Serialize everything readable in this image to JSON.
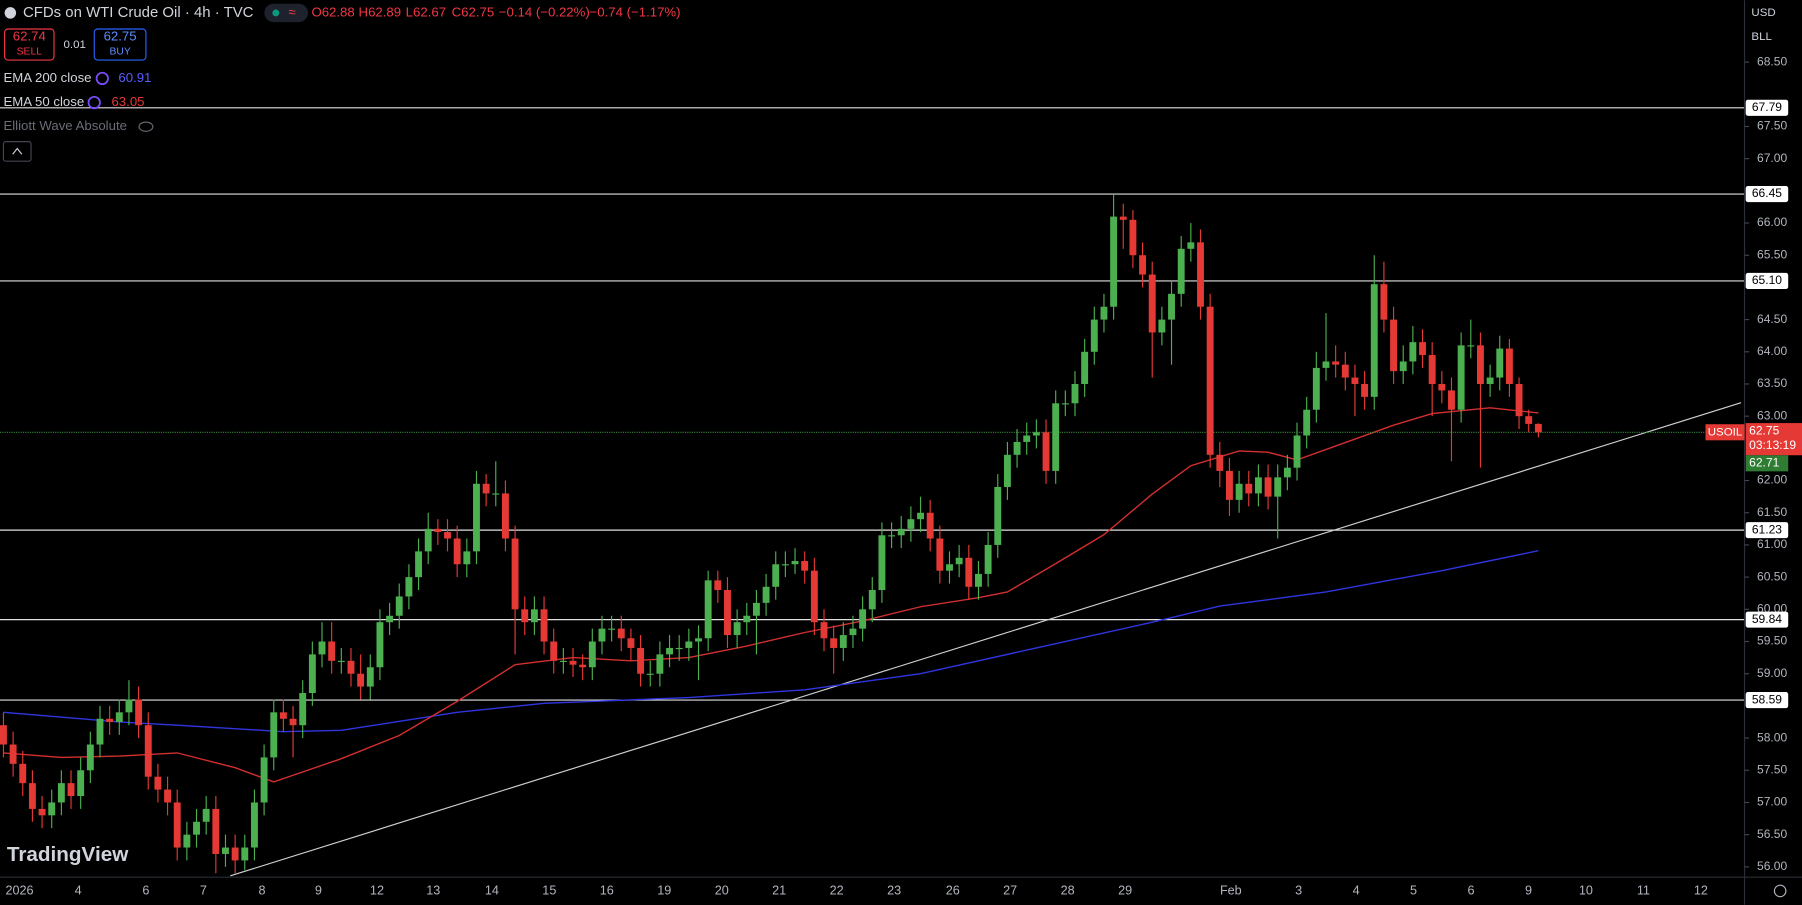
{
  "header": {
    "title": "CFDs on WTI Crude Oil · 4h · TVC",
    "open": "O62.88",
    "high": "H62.89",
    "low": "L62.67",
    "close": "C62.75",
    "change": "−0.14 (−0.22%)",
    "change2": "−0.74 (−1.17%)",
    "sell_price": "62.74",
    "sell": "SELL",
    "spread": "0.01",
    "buy_price": "62.75",
    "buy": "BUY",
    "currency": "USD",
    "unit": "BLL",
    "indicator3": "Elliott Wave Absolute",
    "logo": "TradingView",
    "symbol": "USOIL",
    "countdown": "03:13:19",
    "bid": "62.71"
  },
  "chart_data": {
    "type": "candlestick",
    "up_color": "#4caf50",
    "down_color": "#e53935",
    "ylim": [
      55.84,
      69.46
    ],
    "yticks": [
      {
        "value": 68.5,
        "label": "68.50"
      },
      {
        "value": 67.5,
        "label": "67.50"
      },
      {
        "value": 67,
        "label": "67.00"
      },
      {
        "value": 66,
        "label": "66.00"
      },
      {
        "value": 65.5,
        "label": "65.50"
      },
      {
        "value": 64.5,
        "label": "64.50"
      },
      {
        "value": 64,
        "label": "64.00"
      },
      {
        "value": 63.5,
        "label": "63.50"
      },
      {
        "value": 63,
        "label": "63.00"
      },
      {
        "value": 62,
        "label": "62.00"
      },
      {
        "value": 61.5,
        "label": "61.50"
      },
      {
        "value": 61,
        "label": "61.00"
      },
      {
        "value": 60.5,
        "label": "60.50"
      },
      {
        "value": 60,
        "label": "60.00"
      },
      {
        "value": 59.5,
        "label": "59.50"
      },
      {
        "value": 59,
        "label": "59.00"
      },
      {
        "value": 58,
        "label": "58.00"
      },
      {
        "value": 57.5,
        "label": "57.50"
      },
      {
        "value": 57,
        "label": "57.00"
      },
      {
        "value": 56.5,
        "label": "56.50"
      },
      {
        "value": 56,
        "label": "56.00"
      }
    ],
    "categories": [
      "2026",
      "4",
      "6",
      "7",
      "8",
      "9",
      "12",
      "13",
      "14",
      "15",
      "16",
      "19",
      "20",
      "21",
      "22",
      "23",
      "26",
      "27",
      "28",
      "29",
      "Feb",
      "3",
      "4",
      "5",
      "6",
      "9",
      "10",
      "11",
      "12"
    ],
    "last_price": 62.75,
    "last_price_label": "62.75",
    "levels": [
      {
        "value": 67.79,
        "label": "67.79"
      },
      {
        "value": 66.45,
        "label": "66.45"
      },
      {
        "value": 65.1,
        "label": "65.10"
      },
      {
        "value": 61.23,
        "label": "61.23"
      },
      {
        "value": 59.84,
        "label": "59.84"
      },
      {
        "value": 58.59,
        "label": "58.59"
      }
    ],
    "trendline": {
      "x": [
        23.5,
        180
      ],
      "values": [
        55.86,
        63.21
      ],
      "color": "#d0d0d0"
    },
    "ema": [
      {
        "name": "EMA 200 close",
        "color": "#2f35e0",
        "value": 60.91,
        "x": [
          0,
          12,
          18,
          29,
          35,
          47,
          56,
          71,
          83,
          95,
          107,
          119,
          126,
          137,
          149,
          159
        ],
        "values": [
          58.4,
          58.25,
          58.2,
          58.1,
          58.12,
          58.4,
          58.54,
          58.63,
          58.75,
          59.0,
          59.4,
          59.8,
          60.05,
          60.27,
          60.6,
          60.91
        ]
      },
      {
        "name": "EMA 50 close",
        "color": "#d32f2f",
        "value": 63.05,
        "x": [
          0,
          6,
          12,
          18,
          24,
          28,
          35,
          41,
          47,
          53,
          59,
          65,
          71,
          77,
          83,
          89,
          95,
          101,
          104,
          109,
          114,
          119,
          123,
          128,
          131,
          134,
          139,
          144,
          148,
          154,
          159
        ],
        "values": [
          57.77,
          57.7,
          57.72,
          57.77,
          57.54,
          57.32,
          57.68,
          58.04,
          58.57,
          59.14,
          59.25,
          59.2,
          59.25,
          59.43,
          59.64,
          59.82,
          60.04,
          60.18,
          60.27,
          60.71,
          61.16,
          61.79,
          62.23,
          62.46,
          62.44,
          62.32,
          62.59,
          62.86,
          63.04,
          63.13,
          63.05
        ]
      }
    ],
    "ohlc": [
      [
        58.2,
        58.4,
        57.7,
        57.9
      ],
      [
        57.9,
        58.1,
        57.4,
        57.6
      ],
      [
        57.6,
        57.8,
        57.1,
        57.3
      ],
      [
        57.3,
        57.5,
        56.7,
        56.9
      ],
      [
        56.9,
        57.1,
        56.6,
        56.8
      ],
      [
        56.8,
        57.2,
        56.6,
        57.0
      ],
      [
        57.0,
        57.5,
        56.8,
        57.3
      ],
      [
        57.3,
        57.5,
        56.9,
        57.1
      ],
      [
        57.1,
        57.7,
        56.9,
        57.5
      ],
      [
        57.5,
        58.1,
        57.3,
        57.9
      ],
      [
        57.9,
        58.5,
        57.7,
        58.3
      ],
      [
        58.3,
        58.5,
        58.05,
        58.25
      ],
      [
        58.25,
        58.6,
        58.05,
        58.4
      ],
      [
        58.4,
        58.9,
        58.2,
        58.6
      ],
      [
        58.6,
        58.8,
        58.0,
        58.2
      ],
      [
        58.2,
        58.4,
        57.2,
        57.4
      ],
      [
        57.4,
        57.6,
        57.0,
        57.2
      ],
      [
        57.2,
        57.4,
        56.8,
        57.0
      ],
      [
        57.0,
        57.2,
        56.1,
        56.3
      ],
      [
        56.3,
        56.7,
        56.1,
        56.5
      ],
      [
        56.5,
        56.9,
        56.3,
        56.7
      ],
      [
        56.7,
        57.1,
        56.5,
        56.9
      ],
      [
        56.9,
        57.1,
        55.9,
        56.2
      ],
      [
        56.2,
        56.5,
        56.0,
        56.3
      ],
      [
        56.3,
        56.5,
        55.9,
        56.1
      ],
      [
        56.1,
        56.5,
        55.95,
        56.3
      ],
      [
        56.3,
        57.2,
        56.1,
        57.0
      ],
      [
        57.0,
        57.9,
        56.8,
        57.7
      ],
      [
        57.7,
        58.6,
        57.5,
        58.4
      ],
      [
        58.4,
        58.6,
        58.1,
        58.3
      ],
      [
        58.3,
        58.5,
        57.7,
        58.2
      ],
      [
        58.2,
        58.9,
        58.0,
        58.7
      ],
      [
        58.7,
        59.5,
        58.5,
        59.3
      ],
      [
        59.3,
        59.8,
        59.1,
        59.5
      ],
      [
        59.5,
        59.8,
        59.0,
        59.2
      ],
      [
        59.2,
        59.4,
        59.0,
        59.2
      ],
      [
        59.2,
        59.4,
        58.8,
        59.0
      ],
      [
        59.0,
        59.3,
        58.6,
        58.8
      ],
      [
        58.8,
        59.3,
        58.6,
        59.1
      ],
      [
        59.1,
        60.0,
        58.9,
        59.8
      ],
      [
        59.8,
        60.1,
        59.6,
        59.9
      ],
      [
        59.9,
        60.4,
        59.7,
        60.2
      ],
      [
        60.2,
        60.7,
        60.0,
        60.5
      ],
      [
        60.5,
        61.1,
        60.3,
        60.9
      ],
      [
        60.9,
        61.5,
        60.7,
        61.25
      ],
      [
        61.25,
        61.4,
        61.0,
        61.2
      ],
      [
        61.2,
        61.4,
        60.9,
        61.1
      ],
      [
        61.1,
        61.3,
        60.5,
        60.7
      ],
      [
        60.7,
        61.1,
        60.5,
        60.9
      ],
      [
        60.9,
        62.15,
        60.7,
        61.95
      ],
      [
        61.95,
        62.1,
        61.6,
        61.8
      ],
      [
        61.8,
        62.3,
        61.6,
        61.8
      ],
      [
        61.8,
        62.0,
        60.9,
        61.1
      ],
      [
        61.1,
        61.3,
        59.3,
        60.0
      ],
      [
        60.0,
        60.2,
        59.6,
        59.8
      ],
      [
        59.8,
        60.2,
        59.6,
        60.0
      ],
      [
        60.0,
        60.2,
        59.3,
        59.5
      ],
      [
        59.5,
        59.7,
        59.0,
        59.2
      ],
      [
        59.2,
        59.4,
        59.0,
        59.2
      ],
      [
        59.2,
        59.4,
        58.95,
        59.14
      ],
      [
        59.14,
        59.3,
        58.9,
        59.1
      ],
      [
        59.1,
        59.7,
        58.9,
        59.5
      ],
      [
        59.5,
        59.9,
        59.3,
        59.7
      ],
      [
        59.7,
        59.9,
        59.5,
        59.7
      ],
      [
        59.7,
        59.9,
        59.35,
        59.55
      ],
      [
        59.55,
        59.7,
        59.2,
        59.4
      ],
      [
        59.4,
        59.6,
        58.8,
        59.0
      ],
      [
        59.0,
        59.2,
        58.8,
        59.0
      ],
      [
        59.0,
        59.5,
        58.8,
        59.3
      ],
      [
        59.3,
        59.6,
        59.1,
        59.4
      ],
      [
        59.4,
        59.6,
        59.2,
        59.4
      ],
      [
        59.4,
        59.7,
        59.2,
        59.5
      ],
      [
        59.5,
        59.75,
        58.9,
        59.55
      ],
      [
        59.55,
        60.6,
        59.35,
        60.45
      ],
      [
        60.45,
        60.6,
        60.1,
        60.3
      ],
      [
        60.3,
        60.5,
        59.4,
        59.6
      ],
      [
        59.6,
        60.0,
        59.4,
        59.8
      ],
      [
        59.8,
        60.1,
        59.6,
        59.9
      ],
      [
        59.9,
        60.3,
        59.3,
        60.1
      ],
      [
        60.1,
        60.55,
        59.9,
        60.35
      ],
      [
        60.35,
        60.9,
        60.15,
        60.7
      ],
      [
        60.7,
        60.9,
        60.5,
        60.7
      ],
      [
        60.7,
        60.95,
        60.55,
        60.75
      ],
      [
        60.75,
        60.9,
        60.4,
        60.6
      ],
      [
        60.6,
        60.8,
        59.6,
        59.8
      ],
      [
        59.8,
        60.0,
        59.35,
        59.55
      ],
      [
        59.55,
        59.75,
        59.0,
        59.4
      ],
      [
        59.4,
        59.8,
        59.2,
        59.6
      ],
      [
        59.6,
        59.9,
        59.4,
        59.7
      ],
      [
        59.7,
        60.2,
        59.5,
        60.0
      ],
      [
        60.0,
        60.5,
        59.8,
        60.3
      ],
      [
        60.3,
        61.35,
        60.1,
        61.15
      ],
      [
        61.15,
        61.35,
        60.95,
        61.15
      ],
      [
        61.15,
        61.45,
        60.95,
        61.25
      ],
      [
        61.25,
        61.6,
        61.05,
        61.4
      ],
      [
        61.4,
        61.75,
        61.2,
        61.5
      ],
      [
        61.5,
        61.7,
        60.9,
        61.1
      ],
      [
        61.1,
        61.3,
        60.4,
        60.6
      ],
      [
        60.6,
        60.9,
        60.4,
        60.7
      ],
      [
        60.7,
        61.0,
        60.5,
        60.8
      ],
      [
        60.8,
        61.0,
        60.15,
        60.35
      ],
      [
        60.35,
        60.75,
        60.15,
        60.55
      ],
      [
        60.55,
        61.2,
        60.35,
        61.0
      ],
      [
        61.0,
        62.1,
        60.8,
        61.9
      ],
      [
        61.9,
        62.6,
        61.7,
        62.4
      ],
      [
        62.4,
        62.8,
        62.2,
        62.6
      ],
      [
        62.6,
        62.9,
        62.4,
        62.7
      ],
      [
        62.7,
        62.95,
        62.5,
        62.75
      ],
      [
        62.75,
        62.95,
        61.95,
        62.15
      ],
      [
        62.15,
        63.4,
        61.95,
        63.2
      ],
      [
        63.2,
        63.4,
        63.0,
        63.2
      ],
      [
        63.2,
        63.7,
        63.0,
        63.5
      ],
      [
        63.5,
        64.2,
        63.3,
        64.0
      ],
      [
        64.0,
        64.7,
        63.8,
        64.5
      ],
      [
        64.5,
        64.9,
        64.3,
        64.7
      ],
      [
        64.7,
        66.45,
        64.5,
        66.1
      ],
      [
        66.1,
        66.3,
        65.6,
        66.05
      ],
      [
        66.05,
        66.2,
        65.3,
        65.5
      ],
      [
        65.5,
        65.7,
        65.0,
        65.2
      ],
      [
        65.2,
        65.4,
        63.6,
        64.3
      ],
      [
        64.3,
        64.7,
        64.1,
        64.5
      ],
      [
        64.5,
        65.1,
        63.8,
        64.9
      ],
      [
        64.9,
        65.8,
        64.7,
        65.6
      ],
      [
        65.6,
        66.0,
        65.4,
        65.7
      ],
      [
        65.7,
        65.9,
        64.5,
        64.7
      ],
      [
        64.7,
        64.9,
        62.2,
        62.4
      ],
      [
        62.4,
        62.6,
        61.9,
        62.15
      ],
      [
        62.15,
        62.35,
        61.45,
        61.7
      ],
      [
        61.7,
        62.15,
        61.5,
        61.95
      ],
      [
        61.95,
        62.15,
        61.6,
        61.8
      ],
      [
        61.8,
        62.25,
        61.6,
        62.05
      ],
      [
        62.05,
        62.25,
        61.55,
        61.75
      ],
      [
        61.75,
        62.25,
        61.1,
        62.05
      ],
      [
        62.05,
        62.4,
        61.85,
        62.2
      ],
      [
        62.2,
        62.9,
        62.0,
        62.7
      ],
      [
        62.7,
        63.3,
        62.5,
        63.1
      ],
      [
        63.1,
        64.0,
        62.9,
        63.75
      ],
      [
        63.75,
        64.6,
        63.55,
        63.85
      ],
      [
        63.85,
        64.1,
        63.6,
        63.8
      ],
      [
        63.8,
        64.0,
        63.4,
        63.6
      ],
      [
        63.6,
        63.8,
        63.0,
        63.5
      ],
      [
        63.5,
        63.7,
        63.1,
        63.3
      ],
      [
        63.3,
        65.5,
        63.1,
        65.05
      ],
      [
        65.05,
        65.4,
        64.3,
        64.5
      ],
      [
        64.5,
        64.7,
        63.5,
        63.7
      ],
      [
        63.7,
        64.1,
        63.5,
        63.85
      ],
      [
        63.85,
        64.4,
        63.65,
        64.15
      ],
      [
        64.15,
        64.35,
        63.75,
        63.95
      ],
      [
        63.95,
        64.15,
        63.0,
        63.5
      ],
      [
        63.5,
        63.7,
        63.2,
        63.4
      ],
      [
        63.4,
        63.6,
        62.3,
        63.1
      ],
      [
        63.1,
        64.3,
        62.9,
        64.1
      ],
      [
        64.1,
        64.5,
        63.9,
        64.1
      ],
      [
        64.1,
        64.3,
        62.2,
        63.5
      ],
      [
        63.5,
        63.8,
        63.3,
        63.6
      ],
      [
        63.6,
        64.25,
        63.4,
        64.05
      ],
      [
        64.05,
        64.2,
        63.3,
        63.5
      ],
      [
        63.5,
        63.6,
        62.8,
        63.0
      ],
      [
        63.0,
        63.1,
        62.75,
        62.88
      ],
      [
        62.88,
        62.89,
        62.67,
        62.75
      ]
    ]
  }
}
